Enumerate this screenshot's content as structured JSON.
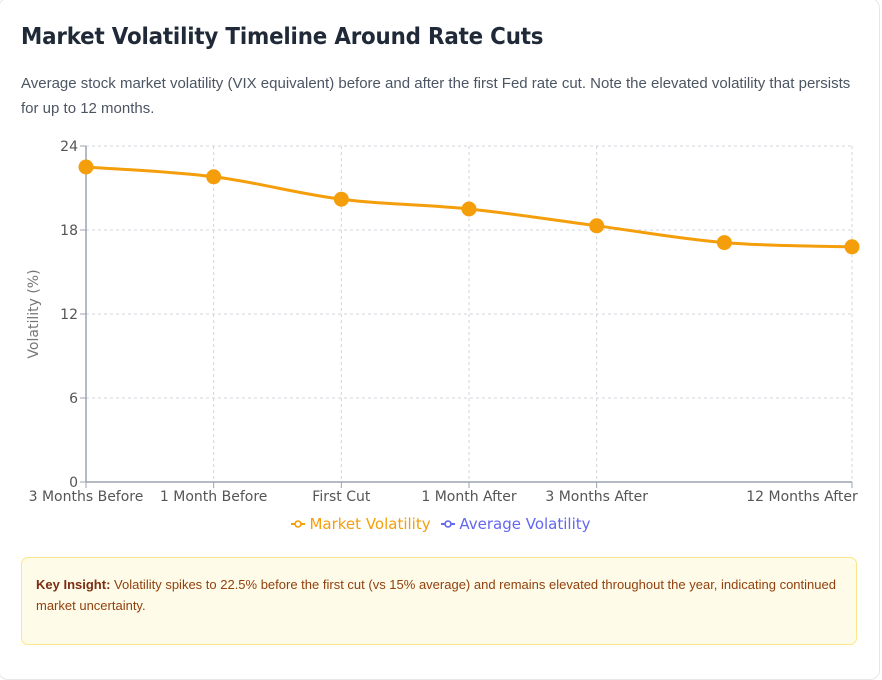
{
  "page": {
    "title": "Market Volatility Timeline Around Rate Cuts",
    "subtitle": "Average stock market volatility (VIX equivalent) before and after the first Fed rate cut. Note the elevated volatility that persists for up to 12 months."
  },
  "insight": {
    "label": "Key Insight:",
    "text": " Volatility spikes to 22.5% before the first cut (vs 15% average) and remains elevated throughout the year, indicating continued market uncertainty."
  },
  "colors": {
    "market": "#f59e0b",
    "average": "#6366f1",
    "grid": "#d1d5db",
    "axis": "#9ca3af"
  },
  "chart_data": {
    "type": "line",
    "title": "Market Volatility Timeline Around Rate Cuts",
    "xlabel": "",
    "ylabel": "Volatility (%)",
    "ylim": [
      0,
      24
    ],
    "yticks": [
      0,
      6,
      12,
      18,
      24
    ],
    "grid": true,
    "legend_position": "bottom",
    "categories": [
      "3 Months Before",
      "1 Month Before",
      "First Cut",
      "1 Month After",
      "3 Months After",
      "",
      "12 Months After"
    ],
    "series": [
      {
        "name": "Market Volatility",
        "color": "#f59e0b",
        "values": [
          22.5,
          21.8,
          20.2,
          19.5,
          18.3,
          17.1,
          16.8
        ],
        "visible": true
      },
      {
        "name": "Average Volatility",
        "color": "#6366f1",
        "values": [],
        "visible": false
      }
    ]
  }
}
